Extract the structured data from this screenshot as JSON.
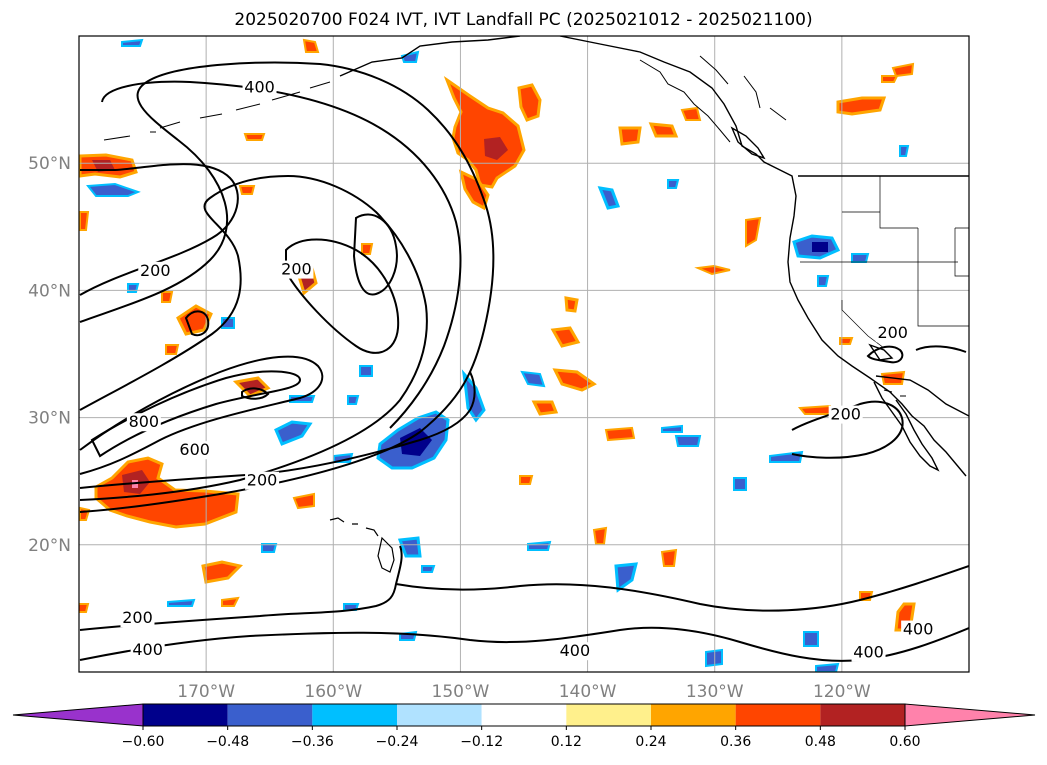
{
  "title": "2025020700 F024 IVT, IVT Landfall PC (2025021012 - 2025021100)",
  "map": {
    "projection": "plate-carree",
    "lon_range": [
      -180,
      -110
    ],
    "lat_range": [
      10,
      60
    ],
    "grid": true,
    "lat_ticks": [
      {
        "value": 20,
        "label": "20°N"
      },
      {
        "value": 30,
        "label": "30°N"
      },
      {
        "value": 40,
        "label": "40°N"
      },
      {
        "value": 50,
        "label": "50°N"
      }
    ],
    "lon_ticks": [
      {
        "value": -170,
        "label": "170°W"
      },
      {
        "value": -160,
        "label": "160°W"
      },
      {
        "value": -150,
        "label": "150°W"
      },
      {
        "value": -140,
        "label": "140°W"
      },
      {
        "value": -130,
        "label": "130°W"
      },
      {
        "value": -120,
        "label": "120°W"
      }
    ]
  },
  "contour_labels": [
    {
      "text": "400",
      "lon": -165.8,
      "lat": 55.7
    },
    {
      "text": "200",
      "lon": -174.0,
      "lat": 41.3
    },
    {
      "text": "200",
      "lon": -162.9,
      "lat": 41.4
    },
    {
      "text": "800",
      "lon": -174.9,
      "lat": 29.4
    },
    {
      "text": "600",
      "lon": -170.9,
      "lat": 27.2
    },
    {
      "text": "200",
      "lon": -165.6,
      "lat": 24.8
    },
    {
      "text": "200",
      "lon": -175.4,
      "lat": 14.0
    },
    {
      "text": "400",
      "lon": -174.6,
      "lat": 11.5
    },
    {
      "text": "400",
      "lon": -141.0,
      "lat": 11.4
    },
    {
      "text": "200",
      "lon": -119.7,
      "lat": 30.0
    },
    {
      "text": "200",
      "lon": -116.0,
      "lat": 36.4
    },
    {
      "text": "400",
      "lon": -117.9,
      "lat": 11.3
    },
    {
      "text": "400",
      "lon": -114.0,
      "lat": 13.1
    }
  ],
  "colorbar": {
    "levels": [
      "-0.60",
      "-0.48",
      "-0.36",
      "-0.24",
      "-0.12",
      "0.12",
      "0.24",
      "0.36",
      "0.48",
      "0.60"
    ],
    "colors": [
      "#9932cc",
      "#00008b",
      "#3a5fcd",
      "#00bfff",
      "#b0e2ff",
      "#ffffff",
      "#fff08c",
      "#ffa500",
      "#ff4500",
      "#b22222",
      "#ff82ab"
    ]
  }
}
